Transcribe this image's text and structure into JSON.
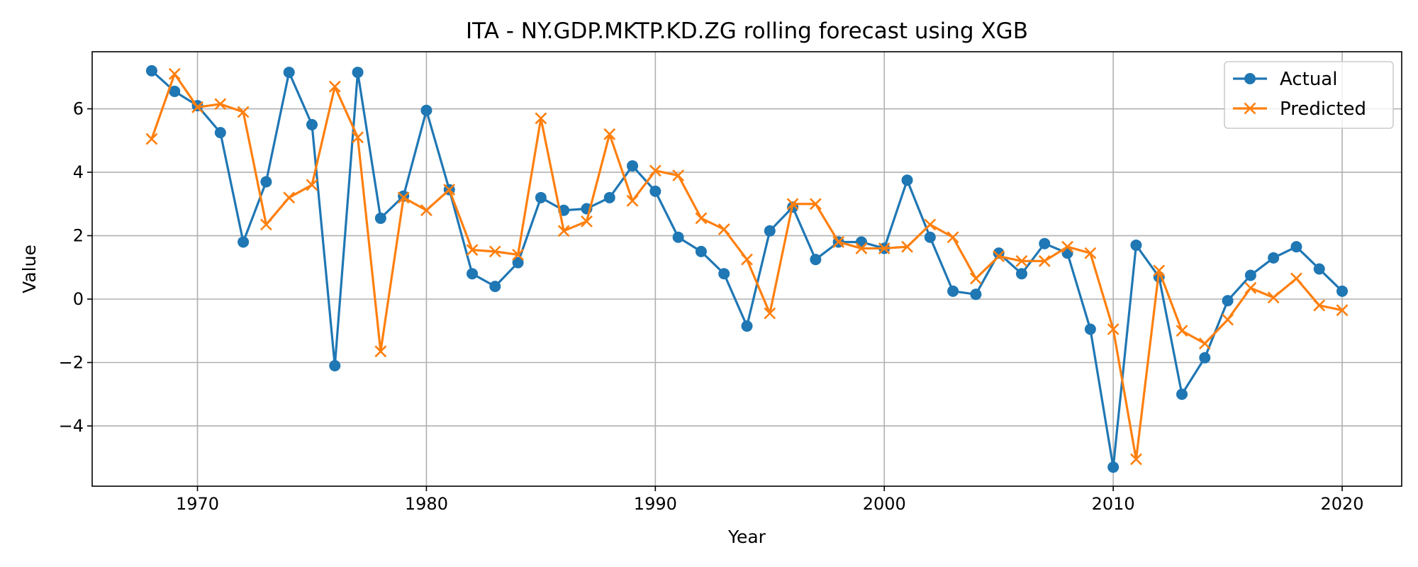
{
  "chart_data": {
    "type": "line",
    "title": "ITA - NY.GDP.MKTP.KD.ZG rolling forecast using XGB",
    "xlabel": "Year",
    "ylabel": "Value",
    "xlim": [
      1965.4,
      2022.6
    ],
    "ylim": [
      -5.9,
      7.8
    ],
    "grid": true,
    "legend_position": "top-right",
    "x_ticks": [
      1970,
      1980,
      1990,
      2000,
      2010,
      2020
    ],
    "y_ticks": [
      -4,
      -2,
      0,
      2,
      4,
      6
    ],
    "y_tick_labels": [
      "−4",
      "−2",
      "0",
      "2",
      "4",
      "6"
    ],
    "x": [
      1968,
      1969,
      1970,
      1971,
      1972,
      1973,
      1974,
      1975,
      1976,
      1977,
      1978,
      1979,
      1980,
      1981,
      1982,
      1983,
      1984,
      1985,
      1986,
      1987,
      1988,
      1989,
      1990,
      1991,
      1992,
      1993,
      1994,
      1995,
      1996,
      1997,
      1998,
      1999,
      2000,
      2001,
      2002,
      2003,
      2004,
      2005,
      2006,
      2007,
      2008,
      2009,
      2010,
      2011,
      2012,
      2013,
      2014,
      2015,
      2016,
      2017,
      2018,
      2019,
      2020
    ],
    "series": [
      {
        "name": "Actual",
        "color": "#1f77b4",
        "marker": "circle",
        "values": [
          7.2,
          6.55,
          6.1,
          5.25,
          1.8,
          3.7,
          7.15,
          5.5,
          -2.1,
          7.15,
          2.55,
          3.25,
          5.95,
          3.45,
          0.8,
          0.4,
          1.15,
          3.2,
          2.8,
          2.85,
          3.2,
          4.2,
          3.4,
          1.95,
          1.5,
          0.8,
          -0.85,
          2.15,
          2.9,
          1.25,
          1.8,
          1.8,
          1.6,
          3.75,
          1.95,
          0.25,
          0.15,
          1.45,
          0.8,
          1.75,
          1.45,
          -0.95,
          -5.3,
          1.7,
          0.7,
          -3.0,
          -1.85,
          -0.05,
          0.75,
          1.3,
          1.65,
          0.95,
          0.25
        ]
      },
      {
        "name": "Predicted",
        "color": "#ff7f0e",
        "marker": "x",
        "values": [
          5.05,
          7.1,
          6.05,
          6.15,
          5.9,
          2.35,
          3.2,
          3.6,
          6.7,
          5.1,
          -1.65,
          3.2,
          2.8,
          3.45,
          1.55,
          1.5,
          1.4,
          5.7,
          2.15,
          2.45,
          5.2,
          3.1,
          4.05,
          3.9,
          2.55,
          2.2,
          1.25,
          -0.45,
          3.0,
          3.0,
          1.8,
          1.6,
          1.6,
          1.65,
          2.35,
          1.95,
          0.65,
          1.35,
          1.2,
          1.2,
          1.65,
          1.45,
          -0.95,
          -5.05,
          0.9,
          -1.0,
          -1.4,
          -0.65,
          0.35,
          0.05,
          0.65,
          -0.2,
          -0.35
        ]
      }
    ]
  }
}
